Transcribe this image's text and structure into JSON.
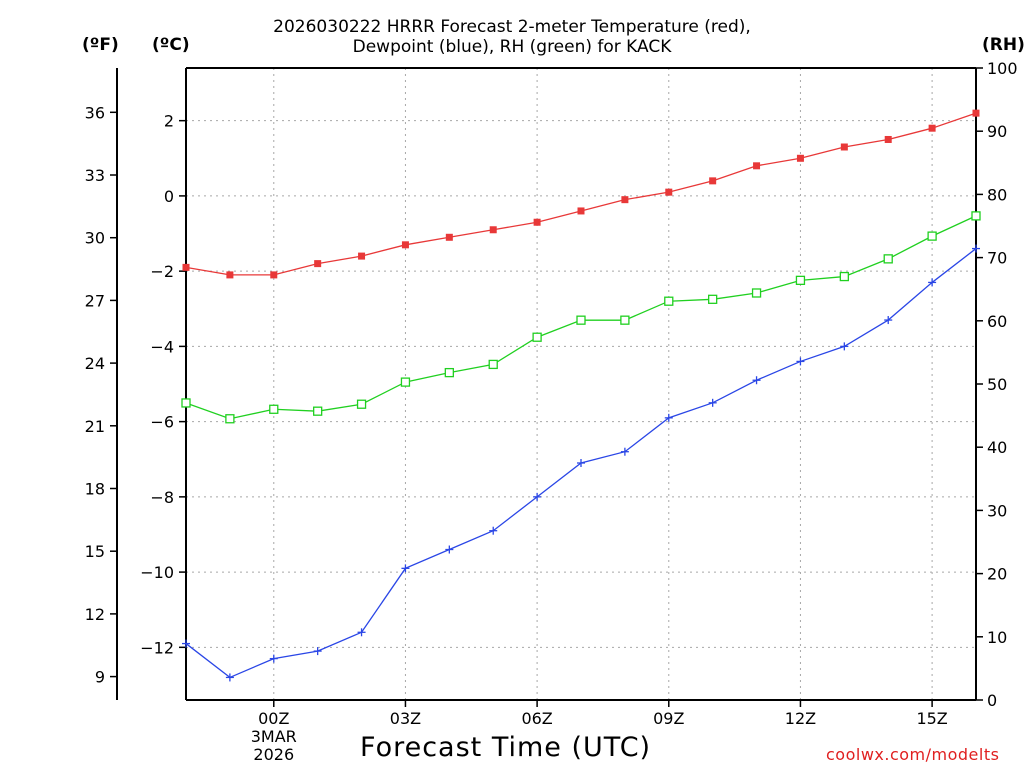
{
  "chart_data": {
    "type": "line",
    "title_line1": "2026030222 HRRR Forecast 2-meter Temperature (red),",
    "title_line2": "Dewpoint (blue), RH (green) for KACK",
    "xlabel": "Forecast Time (UTC)",
    "units": {
      "fahrenheit": "(ºF)",
      "celsius": "(ºC)",
      "rh": "(RH)"
    },
    "x": [
      -2,
      -1,
      0,
      1,
      2,
      3,
      4,
      5,
      6,
      7,
      8,
      9,
      10,
      11,
      12,
      13,
      14,
      15,
      16
    ],
    "xlim": [
      -2,
      16
    ],
    "x_ticks": [
      {
        "x": 0,
        "label": "00Z",
        "sub1": "3MAR",
        "sub2": "2026"
      },
      {
        "x": 3,
        "label": "03Z"
      },
      {
        "x": 6,
        "label": "06Z"
      },
      {
        "x": 9,
        "label": "09Z"
      },
      {
        "x": 12,
        "label": "12Z"
      },
      {
        "x": 15,
        "label": "15Z"
      }
    ],
    "celsius_axis": {
      "ylim": [
        -13.4,
        3.4
      ],
      "ticks": [
        2,
        0,
        -2,
        -4,
        -6,
        -8,
        -10,
        -12
      ],
      "tick_labels": [
        "2",
        "0",
        "−2",
        "−4",
        "−6",
        "−8",
        "−10",
        "−12"
      ]
    },
    "fahrenheit_axis": {
      "ticks": [
        36,
        33,
        30,
        27,
        24,
        21,
        18,
        15,
        12,
        9
      ],
      "tick_labels": [
        "36",
        "33",
        "30",
        "27",
        "24",
        "21",
        "18",
        "15",
        "12",
        "9"
      ]
    },
    "rh_axis": {
      "ylim": [
        0,
        100
      ],
      "ticks": [
        100,
        90,
        80,
        70,
        60,
        50,
        40,
        30,
        20,
        10,
        0
      ],
      "tick_labels": [
        "100",
        "90",
        "80",
        "70",
        "60",
        "50",
        "40",
        "30",
        "20",
        "10",
        "0"
      ]
    },
    "series": [
      {
        "name": "2-meter Temperature",
        "axis": "celsius",
        "color": "#e83838",
        "marker": "filled-square",
        "values": [
          -1.9,
          -2.1,
          -2.1,
          -1.8,
          -1.6,
          -1.3,
          -1.1,
          -0.9,
          -0.7,
          -0.4,
          -0.1,
          0.1,
          0.4,
          0.8,
          1.0,
          1.3,
          1.5,
          1.8,
          2.2
        ]
      },
      {
        "name": "Dewpoint",
        "axis": "celsius",
        "color": "#2a46e6",
        "marker": "plus",
        "values": [
          -11.9,
          -12.8,
          -12.3,
          -12.1,
          -11.6,
          -9.9,
          -9.4,
          -8.9,
          -8.0,
          -7.1,
          -6.8,
          -5.9,
          -5.5,
          -4.9,
          -4.4,
          -4.0,
          -3.3,
          -2.3,
          -1.4
        ]
      },
      {
        "name": "RH",
        "axis": "rh",
        "color": "#20d020",
        "marker": "open-square",
        "values": [
          47,
          44.5,
          46,
          45.7,
          46.8,
          50.3,
          51.8,
          53.1,
          57.4,
          60.1,
          60.1,
          63.1,
          63.4,
          64.4,
          66.4,
          67,
          69.8,
          73.4,
          76.6
        ]
      }
    ]
  },
  "credit": "coolwx.com/modelts"
}
